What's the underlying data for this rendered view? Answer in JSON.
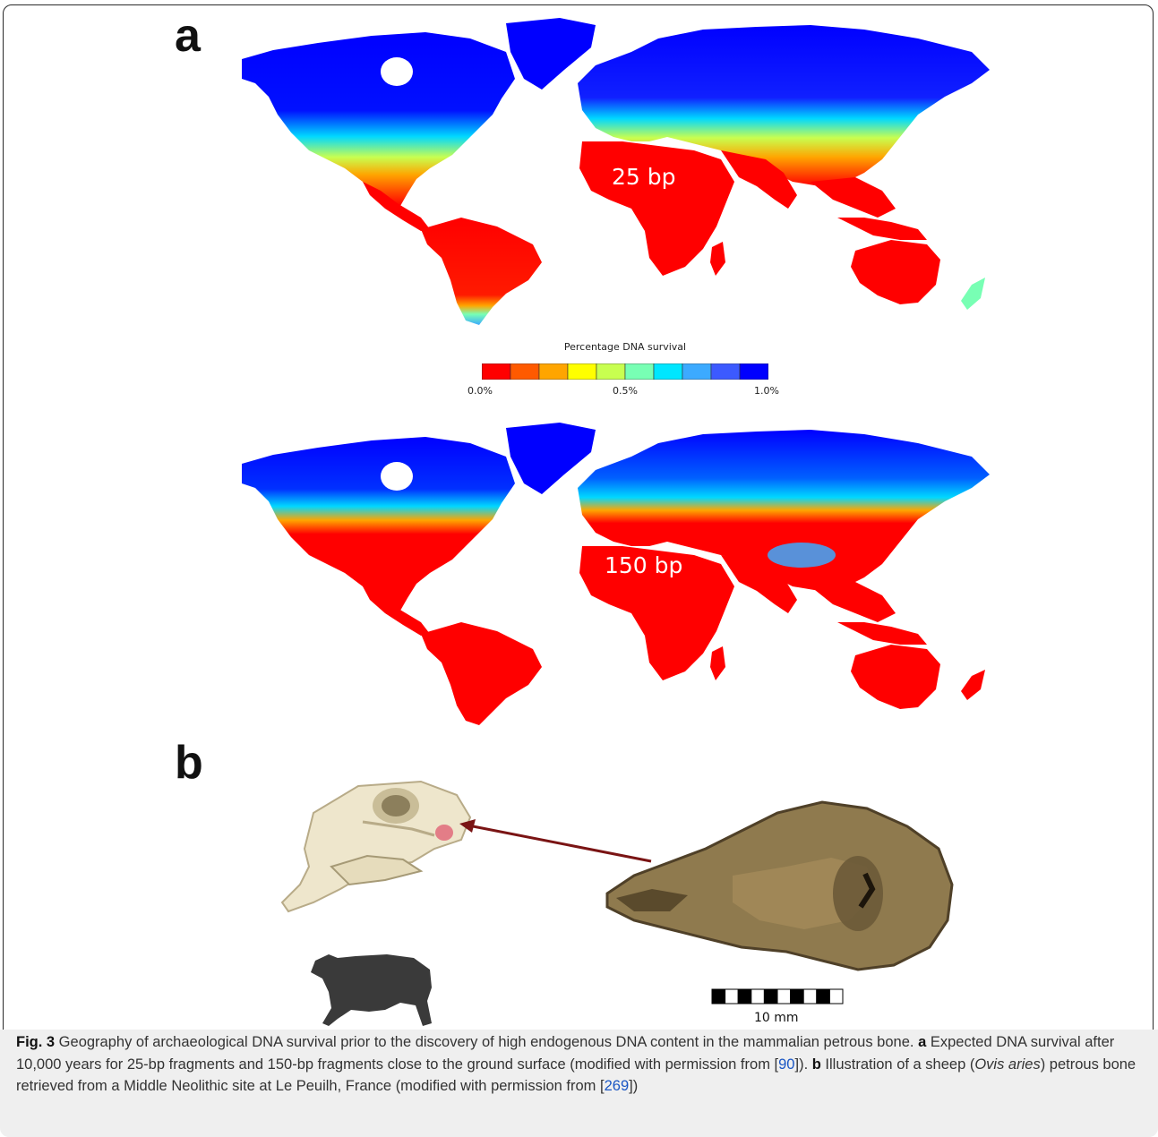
{
  "panels": {
    "a_label": "a",
    "b_label": "b"
  },
  "maps": {
    "top_label": "25 bp",
    "bottom_label": "150 bp"
  },
  "legend": {
    "title": "Percentage DNA survival",
    "ticks": [
      "0.0%",
      "0.5%",
      "1.0%"
    ],
    "colors": [
      "#ff0000",
      "#ff5a00",
      "#ffa500",
      "#ffff00",
      "#c8ff50",
      "#78ffb4",
      "#00e6ff",
      "#3caaff",
      "#3c5aff",
      "#0000ff"
    ]
  },
  "scale_bar": {
    "label": "10 mm"
  },
  "caption": {
    "fig": "Fig. 3",
    "t1": " Geography of archaeological DNA survival prior to the discovery of high endogenous DNA content in the mammalian petrous bone. ",
    "a": "a",
    "t2": " Expected DNA survival after 10,000 years for 25-bp fragments and 150-bp fragments close to the ground surface (modified with permission from ",
    "ref1_open": "[",
    "ref1": "90",
    "ref1_close": "]). ",
    "b": "b",
    "t3": " Illustration of a sheep (",
    "species": "Ovis aries",
    "t4": ") petrous bone retrieved from a Middle Neolithic site at Le Peuilh, France (modified with permission from ",
    "ref2_open": "[",
    "ref2": "269",
    "ref2_close": "])"
  }
}
